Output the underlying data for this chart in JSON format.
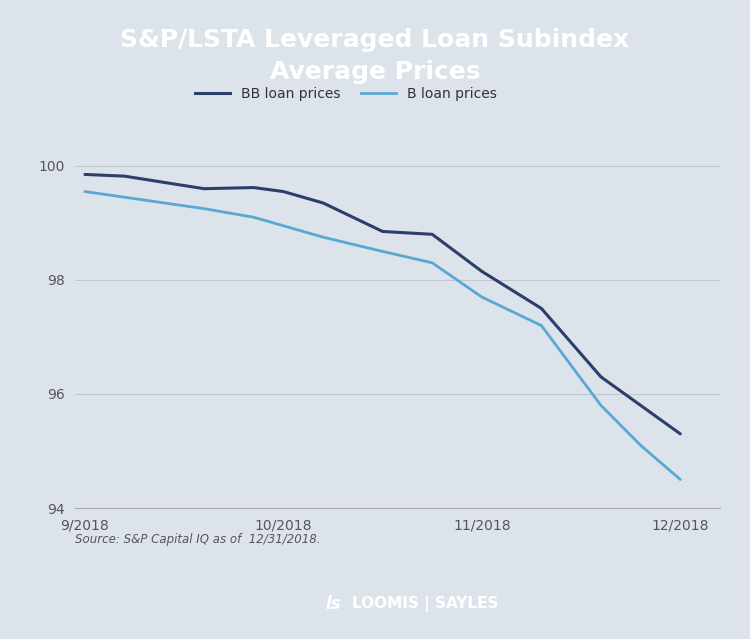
{
  "title": "S&P/LSTA Leveraged Loan Subindex\nAverage Prices",
  "title_bg_color": "#4a5568",
  "chart_bg_color": "#dde3ea",
  "footer_bg_color": "#4a5568",
  "title_text_color": "#ffffff",
  "source_text": "Source: S&P Capital IQ as of  12/31/2018.",
  "bb_label": "BB loan prices",
  "b_label": "B loan prices",
  "bb_color": "#2c3e6b",
  "b_color": "#5aa7d4",
  "bb_linewidth": 2.2,
  "b_linewidth": 2.0,
  "x_labels": [
    "9/2018",
    "10/2018",
    "11/2018",
    "12/2018"
  ],
  "x_values": [
    0,
    1,
    2,
    3
  ],
  "bb_data": [
    [
      0.0,
      99.85
    ],
    [
      0.2,
      99.82
    ],
    [
      0.6,
      99.6
    ],
    [
      0.85,
      99.62
    ],
    [
      1.0,
      99.55
    ],
    [
      1.2,
      99.35
    ],
    [
      1.5,
      98.85
    ],
    [
      1.75,
      98.8
    ],
    [
      2.0,
      98.15
    ],
    [
      2.3,
      97.5
    ],
    [
      2.6,
      96.3
    ],
    [
      2.8,
      95.8
    ],
    [
      3.0,
      95.3
    ]
  ],
  "b_data": [
    [
      0.0,
      99.55
    ],
    [
      0.2,
      99.45
    ],
    [
      0.6,
      99.25
    ],
    [
      0.85,
      99.1
    ],
    [
      1.0,
      98.95
    ],
    [
      1.2,
      98.75
    ],
    [
      1.5,
      98.5
    ],
    [
      1.75,
      98.3
    ],
    [
      2.0,
      97.7
    ],
    [
      2.3,
      97.2
    ],
    [
      2.6,
      95.8
    ],
    [
      2.8,
      95.1
    ],
    [
      3.0,
      94.5
    ]
  ],
  "ylim": [
    94,
    100.5
  ],
  "yticks": [
    94,
    96,
    98,
    100
  ],
  "xlim": [
    -0.05,
    3.2
  ],
  "loomis_text": "LOOMIS | SAYLES",
  "loomis_symbol": "ls"
}
